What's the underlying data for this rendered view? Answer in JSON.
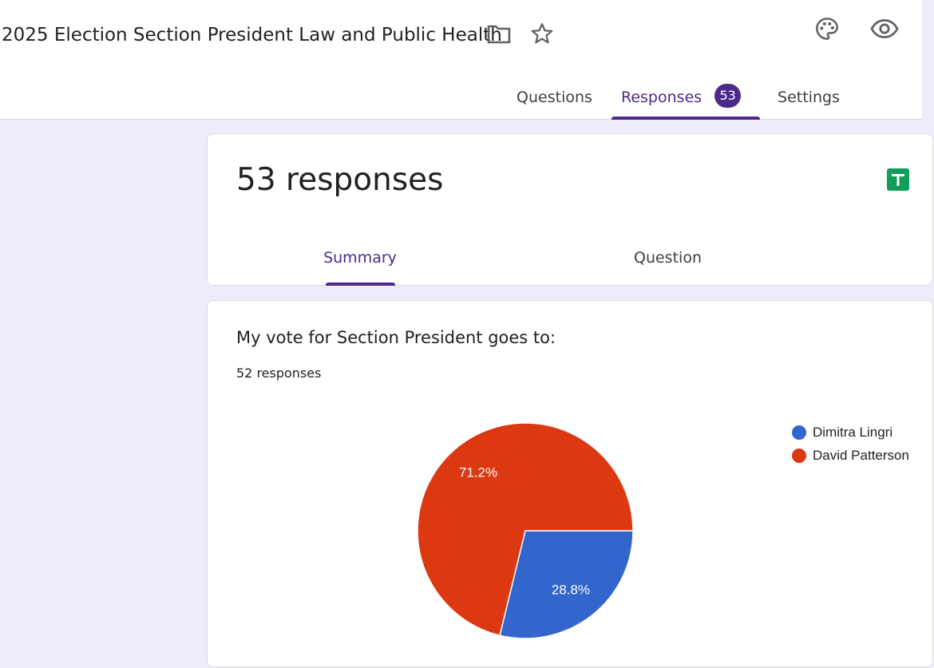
{
  "header": {
    "title": "2025 Election Section President Law and Public Health"
  },
  "tabs": [
    {
      "label": "Questions"
    },
    {
      "label": "Responses",
      "badge": "53"
    },
    {
      "label": "Settings"
    }
  ],
  "summary_card": {
    "response_count": "53 responses",
    "subtabs": [
      {
        "label": "Summary"
      },
      {
        "label": "Question"
      }
    ]
  },
  "question_card": {
    "title": "My vote for Section President goes to:",
    "count": "52 responses"
  },
  "chart_data": {
    "type": "pie",
    "title": "",
    "slices": [
      {
        "label": "Dimitra Lingri",
        "value": 28.8,
        "display": "28.8%",
        "color": "#3366cc"
      },
      {
        "label": "David Patterson",
        "value": 71.2,
        "display": "71.2%",
        "color": "#dc3912"
      }
    ],
    "legend_position": "top-right"
  },
  "icons": {
    "folder": "folder-icon",
    "star": "star-icon",
    "palette": "palette-icon",
    "preview": "eye-icon",
    "sheets": "sheets-icon"
  },
  "colors": {
    "accent": "#4b2a8a",
    "background": "#f0ebf8",
    "sheets_green": "#0f9d58"
  }
}
